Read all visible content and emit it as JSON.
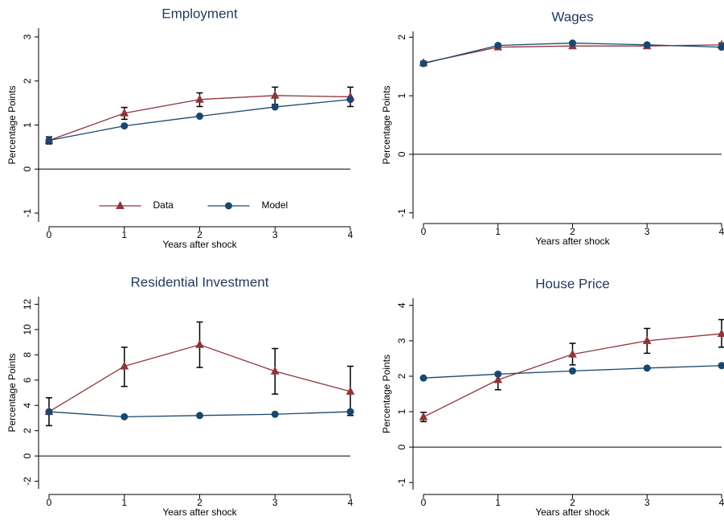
{
  "chart_data": [
    {
      "type": "line",
      "title": "Employment",
      "xlabel": "Years after shock",
      "ylabel": "Percentage Points",
      "x": [
        0,
        1,
        2,
        3,
        4
      ],
      "xlim": [
        0,
        4
      ],
      "xticks": [
        0,
        1,
        2,
        3,
        4
      ],
      "ylim": [
        -1.2,
        3.2
      ],
      "yticks": [
        -1,
        0,
        1,
        2,
        3
      ],
      "refline": 0,
      "legend": "bottom",
      "series": [
        {
          "name": "Data",
          "color": "#90353b",
          "marker": "triangle",
          "values": [
            0.65,
            1.27,
            1.58,
            1.67,
            1.64
          ],
          "err_low": [
            0.57,
            1.13,
            1.42,
            1.47,
            1.42
          ],
          "err_high": [
            0.73,
            1.4,
            1.73,
            1.86,
            1.86
          ]
        },
        {
          "name": "Model",
          "color": "#1a476f",
          "marker": "circle",
          "values": [
            0.65,
            0.98,
            1.2,
            1.41,
            1.58
          ]
        }
      ]
    },
    {
      "type": "line",
      "title": "Wages",
      "xlabel": "Years after shock",
      "ylabel": "Percentage Points",
      "x": [
        0,
        1,
        2,
        3,
        4
      ],
      "xlim": [
        0,
        4
      ],
      "xticks": [
        0,
        1,
        2,
        3,
        4
      ],
      "ylim": [
        -1.1,
        2.1
      ],
      "yticks": [
        -1,
        0,
        1,
        2
      ],
      "refline": 0,
      "series": [
        {
          "color": "#90353b",
          "marker": "triangle",
          "values": [
            1.56,
            1.83,
            1.85,
            1.85,
            1.87
          ],
          "err_low": [
            1.53,
            1.8,
            1.82,
            1.82,
            1.84
          ],
          "err_high": [
            1.59,
            1.86,
            1.88,
            1.88,
            1.9
          ]
        },
        {
          "color": "#1a476f",
          "marker": "circle",
          "values": [
            1.55,
            1.86,
            1.9,
            1.87,
            1.83
          ]
        }
      ]
    },
    {
      "type": "line",
      "title": "Residential Investment",
      "xlabel": "Years after shock",
      "ylabel": "Percentage Points",
      "x": [
        0,
        1,
        2,
        3,
        4
      ],
      "xlim": [
        0,
        4
      ],
      "xticks": [
        0,
        1,
        2,
        3,
        4
      ],
      "ylim": [
        -2.6,
        12.6
      ],
      "yticks": [
        -2,
        0,
        2,
        4,
        6,
        8,
        10,
        12
      ],
      "refline": 0,
      "series": [
        {
          "color": "#90353b",
          "marker": "triangle",
          "values": [
            3.5,
            7.1,
            8.8,
            6.7,
            5.1
          ],
          "err_low": [
            2.4,
            5.5,
            7.0,
            4.9,
            3.2
          ],
          "err_high": [
            4.6,
            8.6,
            10.6,
            8.5,
            7.1
          ]
        },
        {
          "color": "#1a476f",
          "marker": "circle",
          "values": [
            3.5,
            3.1,
            3.2,
            3.3,
            3.5
          ]
        }
      ]
    },
    {
      "type": "line",
      "title": "House Price",
      "xlabel": "Years after shock",
      "ylabel": "Percentage Points",
      "x": [
        0,
        1,
        2,
        3,
        4
      ],
      "xlim": [
        0,
        4
      ],
      "xticks": [
        0,
        1,
        2,
        3,
        4
      ],
      "ylim": [
        -1.2,
        4.2
      ],
      "yticks": [
        -1,
        0,
        1,
        2,
        3,
        4
      ],
      "refline": 0,
      "series": [
        {
          "color": "#90353b",
          "marker": "triangle",
          "values": [
            0.85,
            1.9,
            2.62,
            3.0,
            3.2
          ],
          "err_low": [
            0.72,
            1.62,
            2.32,
            2.65,
            2.82
          ],
          "err_high": [
            0.98,
            2.1,
            2.93,
            3.35,
            3.6
          ]
        },
        {
          "color": "#1a476f",
          "marker": "circle",
          "values": [
            1.95,
            2.06,
            2.15,
            2.23,
            2.3
          ]
        }
      ]
    }
  ]
}
